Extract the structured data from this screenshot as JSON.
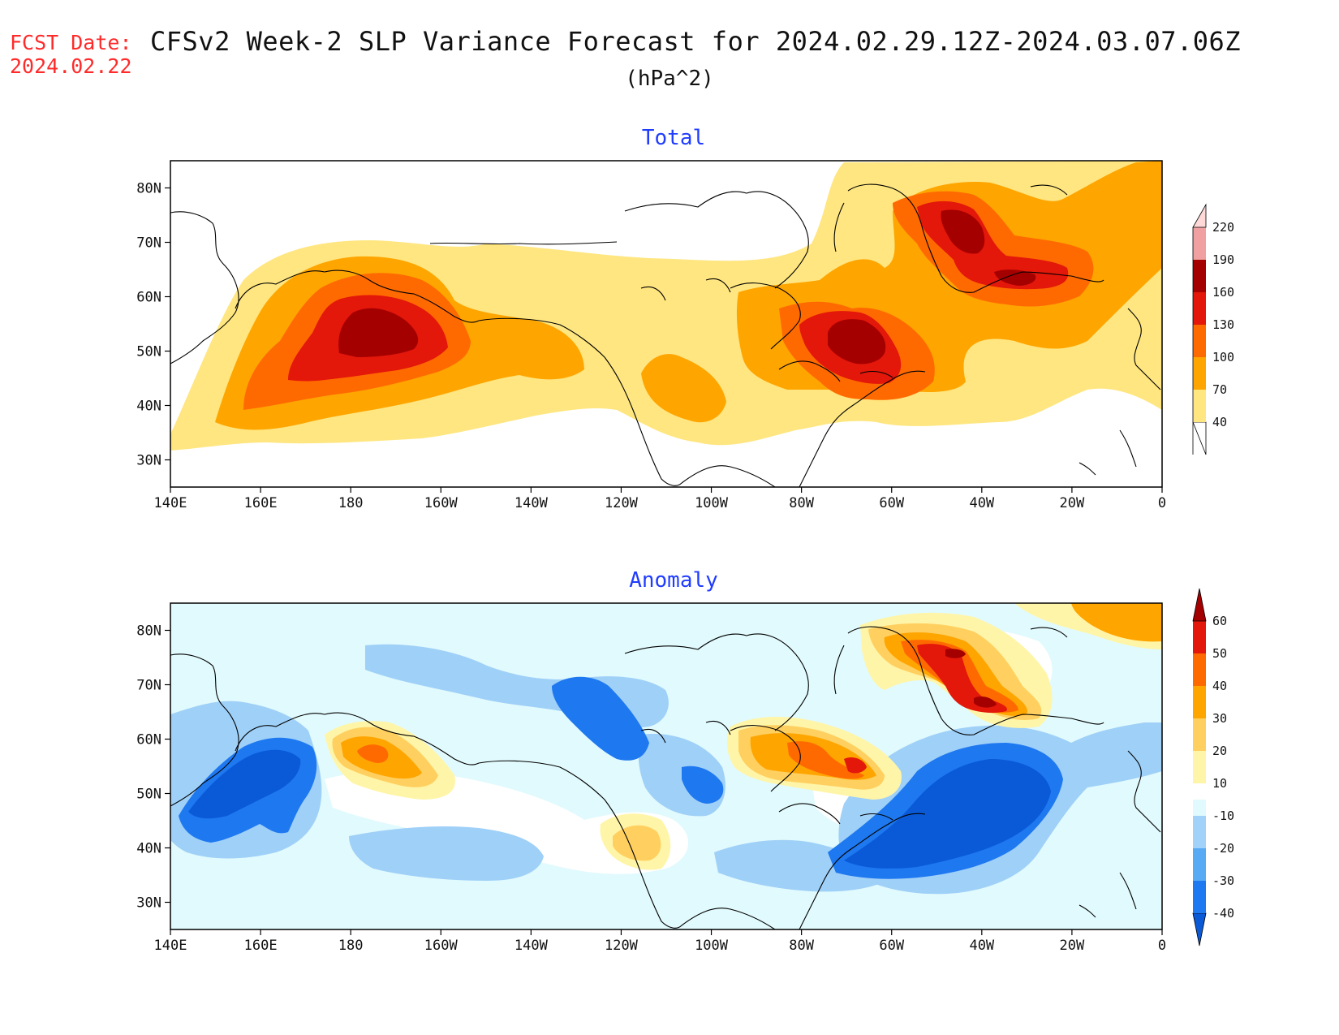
{
  "header": {
    "fcst_label": "FCST Date:",
    "fcst_date": "2024.02.22",
    "title": "CFSv2 Week-2 SLP Variance Forecast for 2024.02.29.12Z-2024.03.07.06Z",
    "units": "(hPa^2)"
  },
  "axes": {
    "lat_labels": [
      "80N",
      "70N",
      "60N",
      "50N",
      "40N",
      "30N"
    ],
    "lon_labels": [
      "140E",
      "160E",
      "180",
      "160W",
      "140W",
      "120W",
      "100W",
      "80W",
      "60W",
      "40W",
      "20W",
      "0"
    ]
  },
  "panels": [
    {
      "title": "Total",
      "colorbar": {
        "levels": [
          "40",
          "70",
          "100",
          "130",
          "160",
          "190",
          "220"
        ],
        "colors": [
          "#ffe680",
          "#ffa500",
          "#ff6a00",
          "#e3170a",
          "#a50000",
          "#f0a0a0",
          "#ffd8d8"
        ]
      }
    },
    {
      "title": "Anomaly",
      "colorbar": {
        "levels": [
          "-40",
          "-30",
          "-20",
          "-10",
          "10",
          "20",
          "30",
          "40",
          "50",
          "60"
        ],
        "colors": [
          "#0a5ad8",
          "#1e78f0",
          "#58aaf5",
          "#a0d2fa",
          "#e1fafd",
          "#ffffff",
          "#fff5a8",
          "#ffd060",
          "#ffa500",
          "#ff6a00",
          "#e3170a",
          "#a50000"
        ]
      }
    }
  ]
}
